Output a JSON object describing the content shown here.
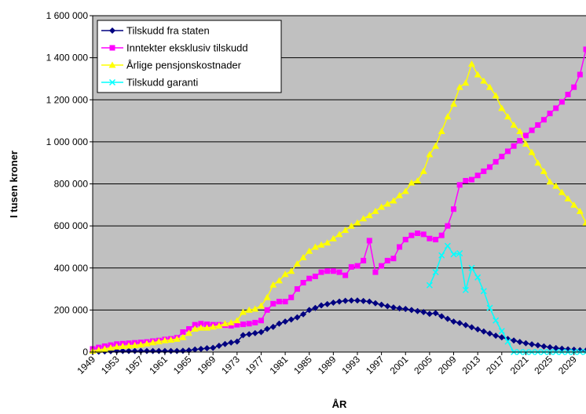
{
  "chart_data": {
    "type": "line",
    "y_label": "I tusen kroner",
    "x_label": "ÅR",
    "x": [
      1949,
      1950,
      1951,
      1952,
      1953,
      1954,
      1955,
      1956,
      1957,
      1958,
      1959,
      1960,
      1961,
      1962,
      1963,
      1964,
      1965,
      1966,
      1967,
      1968,
      1969,
      1970,
      1971,
      1972,
      1973,
      1974,
      1975,
      1976,
      1977,
      1978,
      1979,
      1980,
      1981,
      1982,
      1983,
      1984,
      1985,
      1986,
      1987,
      1988,
      1989,
      1990,
      1991,
      1992,
      1993,
      1994,
      1995,
      1996,
      1997,
      1998,
      1999,
      2000,
      2001,
      2002,
      2003,
      2004,
      2005,
      2006,
      2007,
      2008,
      2009,
      2010,
      2011,
      2012,
      2013,
      2014,
      2015,
      2016,
      2017,
      2018,
      2019,
      2020,
      2021,
      2022,
      2023,
      2024,
      2025,
      2026,
      2027,
      2028,
      2029,
      2030,
      2031
    ],
    "xlim": [
      1949,
      2031
    ],
    "xticks": [
      1949,
      1953,
      1957,
      1961,
      1965,
      1969,
      1973,
      1977,
      1981,
      1985,
      1989,
      1993,
      1997,
      2001,
      2005,
      2009,
      2013,
      2017,
      2021,
      2025,
      2029
    ],
    "ylim": [
      0,
      1600000
    ],
    "yticks": [
      0,
      {
        "value": 200000,
        "label": "200 000"
      },
      {
        "value": 400000,
        "label": "400 000"
      },
      {
        "value": 600000,
        "label": "600 000"
      },
      {
        "value": 800000,
        "label": "800 000"
      },
      {
        "value": 1000000,
        "label": "1 000 000"
      },
      {
        "value": 1200000,
        "label": "1 200 000"
      },
      {
        "value": 1400000,
        "label": "1 400 000"
      },
      {
        "value": 1600000,
        "label": "1 600 000"
      }
    ],
    "grid": true,
    "legend": "top-left",
    "series": [
      {
        "name": "Tilskudd fra staten",
        "color": "#000080",
        "marker": "diamond",
        "values": [
          2000,
          2000,
          3000,
          4000,
          5000,
          5000,
          5000,
          5000,
          5000,
          5000,
          5000,
          5000,
          5000,
          5000,
          5000,
          6000,
          8000,
          12000,
          15000,
          18000,
          20000,
          30000,
          38000,
          45000,
          50000,
          80000,
          85000,
          90000,
          95000,
          110000,
          120000,
          135000,
          145000,
          155000,
          165000,
          180000,
          200000,
          210000,
          222000,
          228000,
          235000,
          240000,
          244000,
          245000,
          245000,
          243000,
          240000,
          232000,
          225000,
          218000,
          212000,
          208000,
          205000,
          200000,
          195000,
          190000,
          182000,
          185000,
          170000,
          158000,
          145000,
          138000,
          128000,
          118000,
          108000,
          98000,
          88000,
          78000,
          70000,
          62000,
          55000,
          48000,
          42000,
          37000,
          32000,
          27000,
          23000,
          19000,
          16000,
          13000,
          11000,
          9000,
          7000
        ]
      },
      {
        "name": "Inntekter eksklusiv tilskudd",
        "color": "#ff00ff",
        "marker": "square",
        "values": [
          15000,
          22000,
          28000,
          33000,
          38000,
          40000,
          42000,
          44000,
          46000,
          48000,
          52000,
          55000,
          60000,
          63000,
          68000,
          95000,
          110000,
          130000,
          135000,
          132000,
          130000,
          130000,
          128000,
          125000,
          130000,
          132000,
          135000,
          140000,
          150000,
          200000,
          230000,
          240000,
          240000,
          260000,
          300000,
          330000,
          350000,
          360000,
          380000,
          385000,
          385000,
          380000,
          365000,
          405000,
          410000,
          435000,
          530000,
          380000,
          410000,
          435000,
          445000,
          500000,
          535000,
          555000,
          565000,
          560000,
          540000,
          535000,
          555000,
          600000,
          680000,
          795000,
          815000,
          820000,
          840000,
          860000,
          880000,
          905000,
          930000,
          955000,
          980000,
          1005000,
          1030000,
          1055000,
          1080000,
          1105000,
          1135000,
          1160000,
          1190000,
          1225000,
          1260000,
          1320000,
          1440000
        ]
      },
      {
        "name": "Årlige pensjonskostnader",
        "color": "#ffff00",
        "marker": "triangle",
        "values": [
          5000,
          10000,
          15000,
          20000,
          25000,
          28000,
          30000,
          32000,
          35000,
          40000,
          45000,
          50000,
          55000,
          58000,
          62000,
          70000,
          90000,
          110000,
          115000,
          115000,
          120000,
          125000,
          135000,
          140000,
          150000,
          190000,
          200000,
          205000,
          220000,
          260000,
          320000,
          340000,
          370000,
          385000,
          420000,
          450000,
          480000,
          500000,
          510000,
          520000,
          540000,
          560000,
          580000,
          600000,
          615000,
          635000,
          650000,
          670000,
          690000,
          705000,
          720000,
          745000,
          765000,
          805000,
          815000,
          860000,
          940000,
          980000,
          1050000,
          1120000,
          1180000,
          1260000,
          1280000,
          1370000,
          1320000,
          1290000,
          1260000,
          1220000,
          1160000,
          1120000,
          1080000,
          1050000,
          990000,
          950000,
          900000,
          860000,
          810000,
          790000,
          760000,
          730000,
          700000,
          670000,
          615000
        ]
      },
      {
        "name": "Tilskudd garanti",
        "color": "#00ffff",
        "marker": "x",
        "values": [
          null,
          null,
          null,
          null,
          null,
          null,
          null,
          null,
          null,
          null,
          null,
          null,
          null,
          null,
          null,
          null,
          null,
          null,
          null,
          null,
          null,
          null,
          null,
          null,
          null,
          null,
          null,
          null,
          null,
          null,
          null,
          null,
          null,
          null,
          null,
          null,
          null,
          null,
          null,
          null,
          null,
          null,
          null,
          null,
          null,
          null,
          null,
          null,
          null,
          null,
          null,
          null,
          null,
          null,
          null,
          null,
          318000,
          380000,
          460000,
          505000,
          465000,
          470000,
          295000,
          400000,
          355000,
          290000,
          210000,
          150000,
          100000,
          50000,
          0,
          0,
          0,
          0,
          0,
          0,
          0,
          0,
          0,
          0,
          0,
          0,
          0
        ]
      }
    ]
  }
}
